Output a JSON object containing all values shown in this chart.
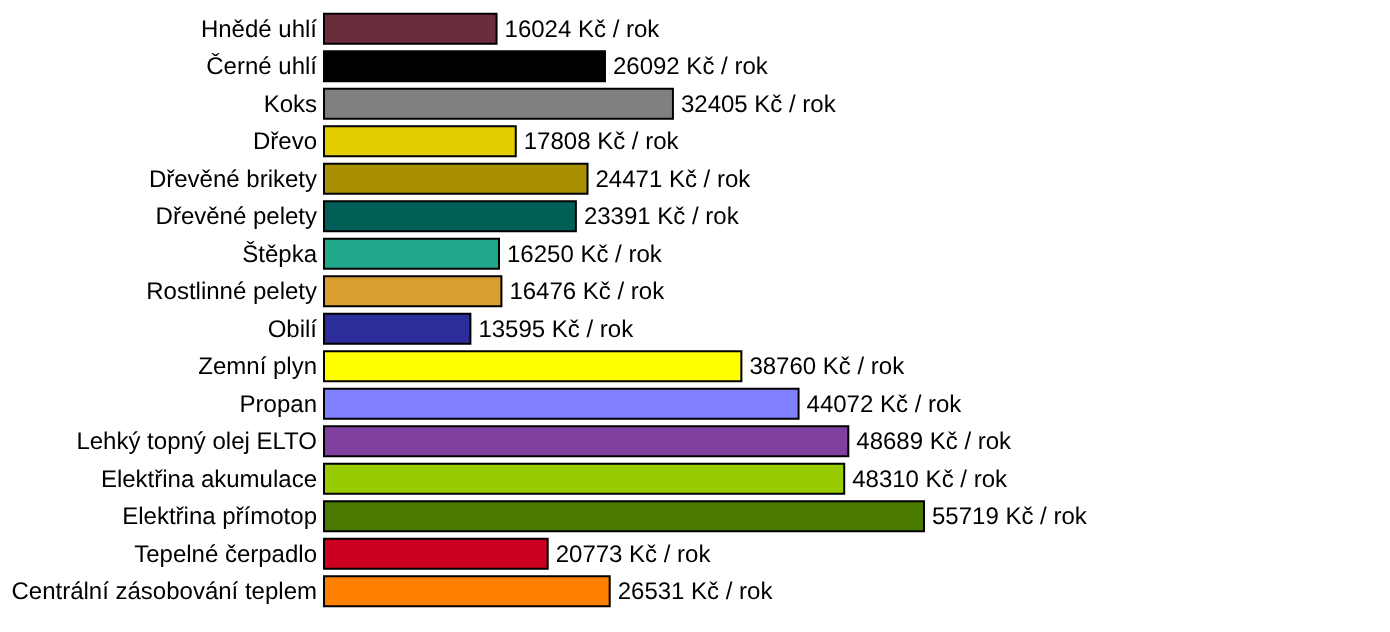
{
  "chart_data": {
    "type": "bar",
    "orientation": "horizontal",
    "categories": [
      "Hnědé uhlí",
      "Černé uhlí",
      "Koks",
      "Dřevo",
      "Dřevěné brikety",
      "Dřevěné pelety",
      "Štěpka",
      "Rostlinné pelety",
      "Obilí",
      "Zemní plyn",
      "Propan",
      "Lehký topný olej ELTO",
      "Elektřina akumulace",
      "Elektřina přímotop",
      "Tepelné čerpadlo",
      "Centrální zásobování teplem"
    ],
    "values": [
      16024,
      26092,
      32405,
      17808,
      24471,
      23391,
      16250,
      16476,
      13595,
      38760,
      44072,
      48689,
      48310,
      55719,
      20773,
      26531
    ],
    "colors": [
      "#6b2d3b",
      "#000000",
      "#808080",
      "#e3cc00",
      "#a89000",
      "#006058",
      "#20a88a",
      "#d9a030",
      "#2c2c9a",
      "#ffff00",
      "#8080ff",
      "#8040a0",
      "#99cc00",
      "#4a7a00",
      "#cc0020",
      "#ff8000"
    ],
    "value_labels": [
      "16024 Kč / rok",
      "26092 Kč / rok",
      "32405 Kč / rok",
      "17808 Kč / rok",
      "24471 Kč / rok",
      "23391 Kč / rok",
      "16250 Kč / rok",
      "16476 Kč / rok",
      "13595 Kč / rok",
      "38760 Kč / rok",
      "44072 Kč / rok",
      "48689 Kč / rok",
      "48310 Kč / rok",
      "55719 Kč / rok",
      "20773 Kč / rok",
      "26531 Kč / rok"
    ]
  }
}
